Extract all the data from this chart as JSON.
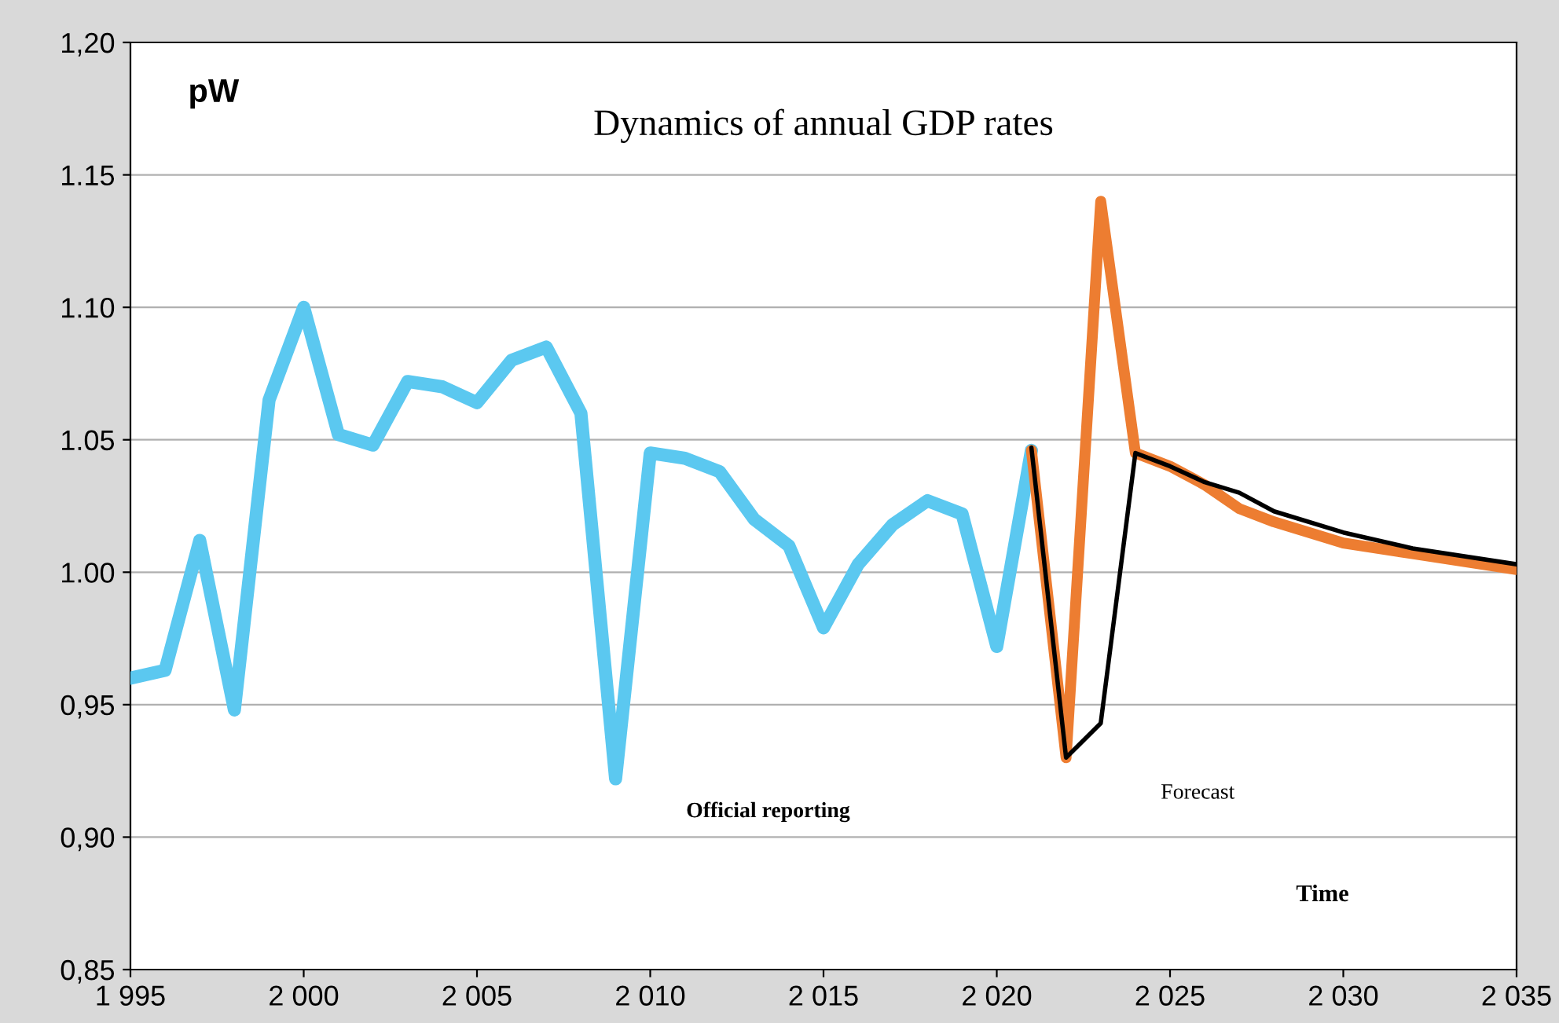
{
  "chart_data": {
    "type": "line",
    "title": "Dynamics of annual GDP rates",
    "annotations": [
      "pW",
      "Official reporting",
      "Forecast",
      "Time"
    ],
    "series": [
      {
        "color": "#5bc8f0",
        "x": [
          1995,
          1996,
          1997,
          1998,
          1999,
          2000,
          2001,
          2002,
          2003,
          2004,
          2005,
          2006,
          2007,
          2008,
          2009,
          2010,
          2011,
          2012,
          2013,
          2014,
          2015,
          2016,
          2017,
          2018,
          2019,
          2020,
          2021
        ],
        "values": [
          0.96,
          0.963,
          1.012,
          0.948,
          1.065,
          1.1,
          1.052,
          1.048,
          1.072,
          1.07,
          1.064,
          1.08,
          1.085,
          1.06,
          0.922,
          1.045,
          1.043,
          1.038,
          1.02,
          1.01,
          0.979,
          1.003,
          1.018,
          1.027,
          1.022,
          0.972,
          1.046
        ]
      },
      {
        "color": "#ed7d31",
        "x": [
          2021,
          2022,
          2023,
          2024,
          2025,
          2026,
          2027,
          2028,
          2029,
          2030,
          2032,
          2035
        ],
        "values": [
          1.046,
          0.93,
          1.14,
          1.045,
          1.04,
          1.033,
          1.024,
          1.019,
          1.015,
          1.011,
          1.007,
          1.001
        ]
      },
      {
        "color": "#000000",
        "x": [
          2021,
          2022,
          2023,
          2024,
          2025,
          2026,
          2027,
          2028,
          2030,
          2032,
          2035
        ],
        "values": [
          1.047,
          0.93,
          0.943,
          1.045,
          1.04,
          1.034,
          1.03,
          1.023,
          1.015,
          1.009,
          1.003
        ]
      }
    ],
    "xlim": [
      1995,
      2035
    ],
    "xticks": [
      {
        "value": 1995,
        "label": "1 995"
      },
      {
        "value": 2000,
        "label": "2 000"
      },
      {
        "value": 2005,
        "label": "2 005"
      },
      {
        "value": 2010,
        "label": "2 010"
      },
      {
        "value": 2015,
        "label": "2 015"
      },
      {
        "value": 2020,
        "label": "2 020"
      },
      {
        "value": 2025,
        "label": "2 025"
      },
      {
        "value": 2030,
        "label": "2 030"
      },
      {
        "value": 2035,
        "label": "2 035"
      }
    ],
    "ylim": [
      0.85,
      1.2
    ],
    "yticks": [
      {
        "value": 0.85,
        "label": "0,85"
      },
      {
        "value": 0.9,
        "label": "0,90"
      },
      {
        "value": 0.95,
        "label": "0,95"
      },
      {
        "value": 1.0,
        "label": "1.00"
      },
      {
        "value": 1.05,
        "label": "1.05"
      },
      {
        "value": 1.1,
        "label": "1.10"
      },
      {
        "value": 1.15,
        "label": "1.15"
      },
      {
        "value": 1.2,
        "label": "1,20"
      }
    ],
    "grid": "y",
    "marker": "none",
    "line_style": "solid"
  }
}
